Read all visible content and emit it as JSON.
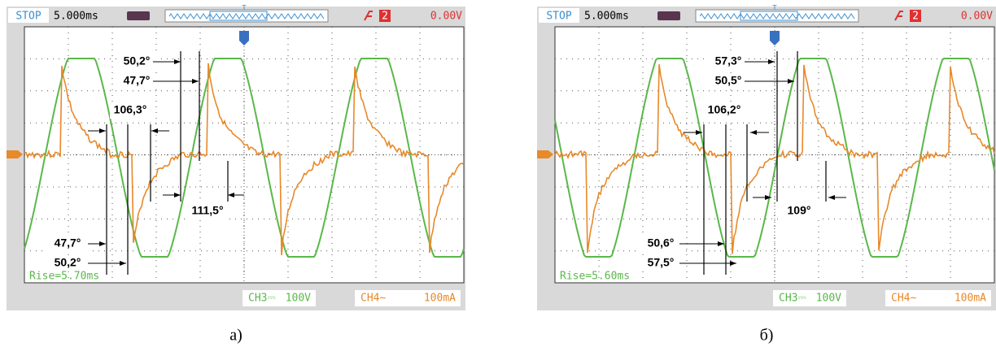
{
  "panels": [
    {
      "header": {
        "status": "STOP",
        "timebase": "5.000ms",
        "trigger_marker": "T",
        "trigger_channel": "2",
        "trigger_level": "0.00V"
      },
      "annotations": [
        "50,2°",
        "47,7°",
        "106,3°",
        "111,5°",
        "47,7°",
        "50,2°"
      ],
      "measurement": "Rise=5.70ms",
      "footer": {
        "ch3": "CH3⎓",
        "ch3_scale": "100V",
        "ch4": "CH4∼",
        "ch4_scale": "100mA"
      },
      "caption": "а)"
    },
    {
      "header": {
        "status": "STOP",
        "timebase": "5.000ms",
        "trigger_marker": "T",
        "trigger_channel": "2",
        "trigger_level": "0.00V"
      },
      "annotations": [
        "57,3°",
        "50,5°",
        "106,2°",
        "109°",
        "50,6°",
        "57,5°"
      ],
      "measurement": "Rise=5.60ms",
      "footer": {
        "ch3": "CH3⎓",
        "ch3_scale": "100V",
        "ch4": "CH4∼",
        "ch4_scale": "100mA"
      },
      "caption": "б)"
    }
  ]
}
